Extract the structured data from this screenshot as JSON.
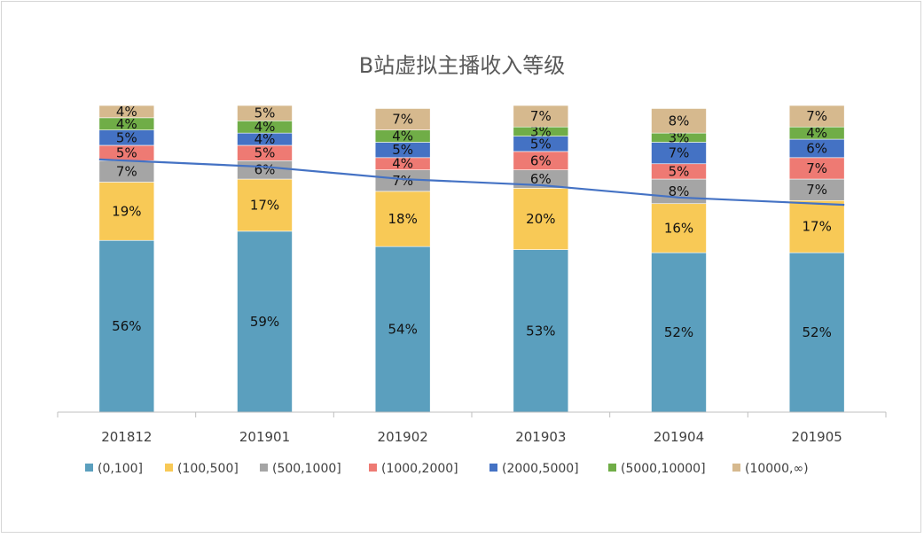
{
  "chart_data": {
    "type": "bar",
    "stacked": true,
    "title": "B站虚拟主播收入等级",
    "xlabel": "",
    "ylabel": "",
    "ylim": [
      0,
      1
    ],
    "grid": false,
    "legend_position": "bottom",
    "categories": [
      "201812",
      "201901",
      "201902",
      "201903",
      "201904",
      "201905"
    ],
    "series": [
      {
        "name": "(0,100]",
        "color": "#5b9fbe",
        "values": [
          0.56,
          0.59,
          0.54,
          0.53,
          0.52,
          0.52
        ],
        "labels": [
          "56%",
          "59%",
          "54%",
          "53%",
          "52%",
          "52%"
        ]
      },
      {
        "name": "(100,500]",
        "color": "#f8c956",
        "values": [
          0.19,
          0.17,
          0.18,
          0.2,
          0.16,
          0.17
        ],
        "labels": [
          "19%",
          "17%",
          "18%",
          "20%",
          "16%",
          "17%"
        ]
      },
      {
        "name": "(500,1000]",
        "color": "#a5a5a5",
        "values": [
          0.07,
          0.06,
          0.07,
          0.06,
          0.08,
          0.07
        ],
        "labels": [
          "7%",
          "6%",
          "7%",
          "6%",
          "8%",
          "7%"
        ]
      },
      {
        "name": "(1000,2000]",
        "color": "#ee7a73",
        "values": [
          0.05,
          0.05,
          0.04,
          0.06,
          0.05,
          0.07
        ],
        "labels": [
          "5%",
          "5%",
          "4%",
          "6%",
          "5%",
          "7%"
        ]
      },
      {
        "name": "(2000,5000]",
        "color": "#4472c4",
        "values": [
          0.05,
          0.04,
          0.05,
          0.05,
          0.07,
          0.06
        ],
        "labels": [
          "5%",
          "4%",
          "5%",
          "5%",
          "7%",
          "6%"
        ]
      },
      {
        "name": "(5000,10000]",
        "color": "#70ad47",
        "values": [
          0.04,
          0.04,
          0.04,
          0.03,
          0.03,
          0.04
        ],
        "labels": [
          "4%",
          "4%",
          "4%",
          "3%",
          "3%",
          "4%"
        ]
      },
      {
        "name": "(10000,∞)",
        "color": "#d6b98e",
        "values": [
          0.04,
          0.05,
          0.07,
          0.07,
          0.08,
          0.07
        ],
        "labels": [
          "4%",
          "5%",
          "7%",
          "7%",
          "8%",
          "7%"
        ]
      }
    ],
    "trend_line": {
      "color": "#4472c4",
      "values": [
        0.82,
        0.8,
        0.76,
        0.74,
        0.7,
        0.68
      ]
    }
  }
}
